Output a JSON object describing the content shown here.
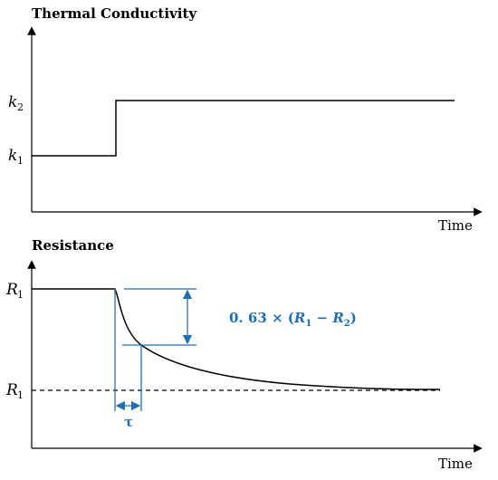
{
  "top_chart": {
    "title": "Thermal Conductivity",
    "xlabel": "Time",
    "ticks": [
      {
        "main": "k",
        "sub": "2"
      },
      {
        "main": "k",
        "sub": "1"
      }
    ]
  },
  "bottom_chart": {
    "title": "Resistance",
    "xlabel": "Time",
    "ticks": [
      {
        "main": "R",
        "sub": "1"
      },
      {
        "main": "R",
        "sub": "1"
      }
    ],
    "annotation": {
      "prefix": "0. 63 × (",
      "r1": "R",
      "r1_sub": "1",
      "minus": " − ",
      "r2": "R",
      "r2_sub": "2",
      "suffix": ")"
    },
    "tau_label": "τ"
  },
  "colors": {
    "annotation": "#1f6fb5",
    "line": "#000000"
  }
}
